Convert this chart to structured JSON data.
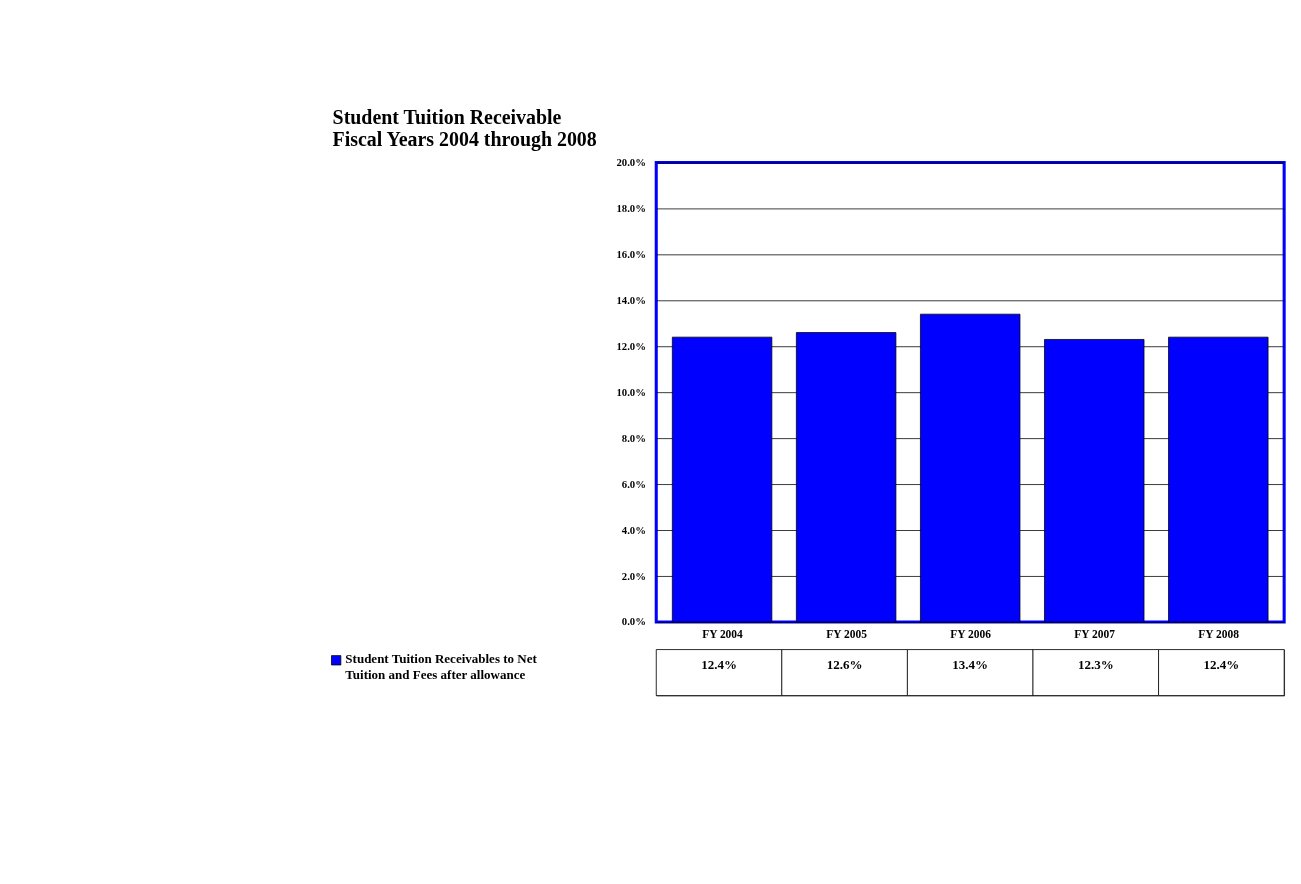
{
  "chart_data": {
    "type": "bar",
    "title": "Student Tuition Receivable\nFiscal Years 2004 through 2008",
    "categories": [
      "FY 2004",
      "FY 2005",
      "FY 2006",
      "FY 2007",
      "FY 2008"
    ],
    "series": [
      {
        "name": "Student Tuition Receivables to Net Tuition and Fees after allowance",
        "color": "#0000ff",
        "values": [
          12.4,
          12.6,
          13.4,
          12.3,
          12.4
        ],
        "value_labels": [
          "12.4%",
          "12.6%",
          "13.4%",
          "12.3%",
          "12.4%"
        ]
      }
    ],
    "ylim": [
      0,
      20
    ],
    "yticks": [
      {
        "value": 0,
        "label": "0.0%"
      },
      {
        "value": 2,
        "label": "2.0%"
      },
      {
        "value": 4,
        "label": "4.0%"
      },
      {
        "value": 6,
        "label": "6.0%"
      },
      {
        "value": 8,
        "label": "8.0%"
      },
      {
        "value": 10,
        "label": "10.0%"
      },
      {
        "value": 12,
        "label": "12.0%"
      },
      {
        "value": 14,
        "label": "14.0%"
      },
      {
        "value": 16,
        "label": "16.0%"
      },
      {
        "value": 18,
        "label": "18.0%"
      },
      {
        "value": 20,
        "label": "20.0%"
      }
    ],
    "grid": "y",
    "legend": "bottom left"
  }
}
